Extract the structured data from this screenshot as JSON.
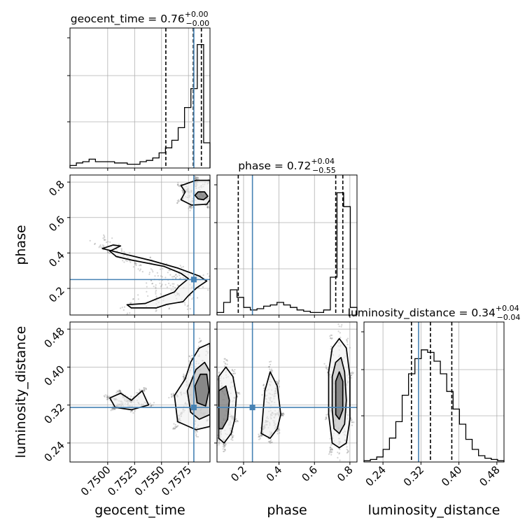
{
  "chart_data": {
    "type": "corner",
    "parameters": [
      {
        "key": "geocent_time",
        "label": "geocent_time",
        "title": {
          "name": "geocent_time",
          "median": "0.76",
          "plus": "+0.00",
          "minus": "−0.00"
        },
        "range": [
          0.7465,
          0.7595
        ],
        "ticks": [
          0.75,
          0.7525,
          0.755,
          0.7575
        ],
        "tick_labels": [
          "0.7500",
          "0.7525",
          "0.7550",
          "0.7575"
        ],
        "quantiles": [
          0.7554,
          0.75795,
          0.7587
        ],
        "truth": 0.758,
        "hist_counts": [
          0.02,
          0.04,
          0.05,
          0.07,
          0.05,
          0.05,
          0.05,
          0.04,
          0.04,
          0.03,
          0.03,
          0.05,
          0.06,
          0.08,
          0.12,
          0.16,
          0.22,
          0.32,
          0.48,
          0.63,
          0.98,
          0.2
        ]
      },
      {
        "key": "phase",
        "label": "phase",
        "title": {
          "name": "phase",
          "median": "0.72",
          "plus": "+0.04",
          "minus": "−0.55"
        },
        "range": [
          0.05,
          0.84
        ],
        "ticks": [
          0.2,
          0.4,
          0.6,
          0.8
        ],
        "tick_labels": [
          "0.2",
          "0.4",
          "0.6",
          "0.8"
        ],
        "quantiles": [
          0.17,
          0.72,
          0.76
        ],
        "truth": 0.25,
        "hist_counts": [
          0.02,
          0.1,
          0.2,
          0.14,
          0.06,
          0.04,
          0.05,
          0.07,
          0.08,
          0.1,
          0.08,
          0.06,
          0.04,
          0.03,
          0.02,
          0.02,
          0.04,
          0.3,
          0.97,
          0.86,
          0.06
        ]
      },
      {
        "key": "luminosity_distance",
        "label": "luminosity_distance",
        "title": {
          "name": "luminosity_distance",
          "median": "0.34",
          "plus": "+0.04",
          "minus": "−0.04"
        },
        "range": [
          0.2,
          0.495
        ],
        "ticks": [
          0.24,
          0.32,
          0.4,
          0.48
        ],
        "tick_labels": [
          "0.24",
          "0.32",
          "0.40",
          "0.48"
        ],
        "quantiles": [
          0.3,
          0.34,
          0.385
        ],
        "truth": 0.315,
        "hist_counts": [
          0.01,
          0.02,
          0.04,
          0.1,
          0.19,
          0.32,
          0.53,
          0.7,
          0.82,
          0.89,
          0.87,
          0.8,
          0.7,
          0.56,
          0.42,
          0.3,
          0.18,
          0.1,
          0.05,
          0.03,
          0.02,
          0.01
        ]
      }
    ],
    "truth_color": "#4682b4",
    "grid": true,
    "contours": {
      "geocent_time__phase": [
        {
          "level": "outer",
          "points": [
            [
              0.7505,
              0.445
            ],
            [
              0.7495,
              0.425
            ],
            [
              0.7515,
              0.395
            ],
            [
              0.754,
              0.358
            ],
            [
              0.7565,
              0.315
            ],
            [
              0.7585,
              0.27
            ],
            [
              0.7592,
              0.242
            ],
            [
              0.7583,
              0.205
            ],
            [
              0.7575,
              0.16
            ],
            [
              0.757,
              0.125
            ],
            [
              0.7555,
              0.11
            ],
            [
              0.7545,
              0.09
            ],
            [
              0.7522,
              0.09
            ],
            [
              0.7518,
              0.108
            ],
            [
              0.7535,
              0.115
            ],
            [
              0.7545,
              0.14
            ],
            [
              0.7562,
              0.18
            ],
            [
              0.7566,
              0.21
            ],
            [
              0.7575,
              0.255
            ],
            [
              0.7568,
              0.285
            ],
            [
              0.7552,
              0.325
            ],
            [
              0.7522,
              0.36
            ],
            [
              0.7508,
              0.38
            ],
            [
              0.7502,
              0.41
            ],
            [
              0.7512,
              0.44
            ],
            [
              0.7505,
              0.445
            ]
          ]
        },
        {
          "level": "outer-top",
          "points": [
            [
              0.7582,
              0.81
            ],
            [
              0.7568,
              0.78
            ],
            [
              0.7572,
              0.745
            ],
            [
              0.7568,
              0.7
            ],
            [
              0.7578,
              0.67
            ],
            [
              0.7592,
              0.675
            ],
            [
              0.7595,
              0.7
            ],
            [
              0.7595,
              0.81
            ],
            [
              0.7582,
              0.81
            ]
          ]
        },
        {
          "level": "inner",
          "points": [
            [
              0.7581,
              0.725
            ],
            [
              0.7584,
              0.705
            ],
            [
              0.7589,
              0.7
            ],
            [
              0.7593,
              0.72
            ],
            [
              0.759,
              0.745
            ],
            [
              0.7584,
              0.745
            ],
            [
              0.7581,
              0.725
            ]
          ]
        }
      ],
      "geocent_time__luminosity_distance": [
        {
          "level": "outer",
          "points": [
            [
              0.7507,
              0.315
            ],
            [
              0.7502,
              0.335
            ],
            [
              0.7512,
              0.345
            ],
            [
              0.7522,
              0.33
            ],
            [
              0.7532,
              0.35
            ],
            [
              0.7538,
              0.32
            ],
            [
              0.7522,
              0.31
            ],
            [
              0.7507,
              0.315
            ]
          ]
        },
        {
          "level": "outer",
          "points": [
            [
              0.7565,
              0.285
            ],
            [
              0.7562,
              0.34
            ],
            [
              0.7572,
              0.375
            ],
            [
              0.7577,
              0.41
            ],
            [
              0.7585,
              0.44
            ],
            [
              0.7595,
              0.45
            ],
            [
              0.7595,
              0.275
            ],
            [
              0.7582,
              0.268
            ],
            [
              0.7565,
              0.285
            ]
          ]
        },
        {
          "level": "mid",
          "points": [
            [
              0.7577,
              0.305
            ],
            [
              0.7574,
              0.35
            ],
            [
              0.7582,
              0.395
            ],
            [
              0.759,
              0.41
            ],
            [
              0.7595,
              0.39
            ],
            [
              0.7595,
              0.3
            ],
            [
              0.7585,
              0.29
            ],
            [
              0.7577,
              0.305
            ]
          ]
        },
        {
          "level": "inner",
          "points": [
            [
              0.7583,
              0.325
            ],
            [
              0.7581,
              0.36
            ],
            [
              0.7586,
              0.385
            ],
            [
              0.7592,
              0.385
            ],
            [
              0.7594,
              0.35
            ],
            [
              0.7591,
              0.318
            ],
            [
              0.7583,
              0.325
            ]
          ]
        }
      ],
      "phase__luminosity_distance": [
        {
          "level": "outer",
          "points": [
            [
              0.06,
              0.25
            ],
            [
              0.06,
              0.38
            ],
            [
              0.1,
              0.4
            ],
            [
              0.14,
              0.38
            ],
            [
              0.16,
              0.34
            ],
            [
              0.15,
              0.29
            ],
            [
              0.13,
              0.26
            ],
            [
              0.09,
              0.24
            ],
            [
              0.06,
              0.25
            ]
          ]
        },
        {
          "level": "inner",
          "points": [
            [
              0.06,
              0.27
            ],
            [
              0.06,
              0.35
            ],
            [
              0.1,
              0.36
            ],
            [
              0.12,
              0.33
            ],
            [
              0.11,
              0.29
            ],
            [
              0.08,
              0.27
            ],
            [
              0.06,
              0.27
            ]
          ]
        },
        {
          "level": "outer",
          "points": [
            [
              0.3,
              0.26
            ],
            [
              0.32,
              0.35
            ],
            [
              0.35,
              0.39
            ],
            [
              0.39,
              0.36
            ],
            [
              0.41,
              0.3
            ],
            [
              0.39,
              0.27
            ],
            [
              0.35,
              0.25
            ],
            [
              0.3,
              0.26
            ]
          ]
        },
        {
          "level": "outer",
          "points": [
            [
              0.7,
              0.24
            ],
            [
              0.68,
              0.3
            ],
            [
              0.68,
              0.39
            ],
            [
              0.7,
              0.44
            ],
            [
              0.74,
              0.46
            ],
            [
              0.78,
              0.44
            ],
            [
              0.8,
              0.38
            ],
            [
              0.8,
              0.29
            ],
            [
              0.78,
              0.24
            ],
            [
              0.74,
              0.23
            ],
            [
              0.7,
              0.24
            ]
          ]
        },
        {
          "level": "mid",
          "points": [
            [
              0.71,
              0.27
            ],
            [
              0.7,
              0.31
            ],
            [
              0.7,
              0.38
            ],
            [
              0.72,
              0.41
            ],
            [
              0.75,
              0.42
            ],
            [
              0.77,
              0.39
            ],
            [
              0.78,
              0.33
            ],
            [
              0.77,
              0.28
            ],
            [
              0.74,
              0.26
            ],
            [
              0.71,
              0.27
            ]
          ]
        },
        {
          "level": "inner",
          "points": [
            [
              0.72,
              0.3
            ],
            [
              0.72,
              0.37
            ],
            [
              0.74,
              0.39
            ],
            [
              0.76,
              0.37
            ],
            [
              0.76,
              0.31
            ],
            [
              0.74,
              0.29
            ],
            [
              0.72,
              0.3
            ]
          ]
        }
      ]
    }
  }
}
